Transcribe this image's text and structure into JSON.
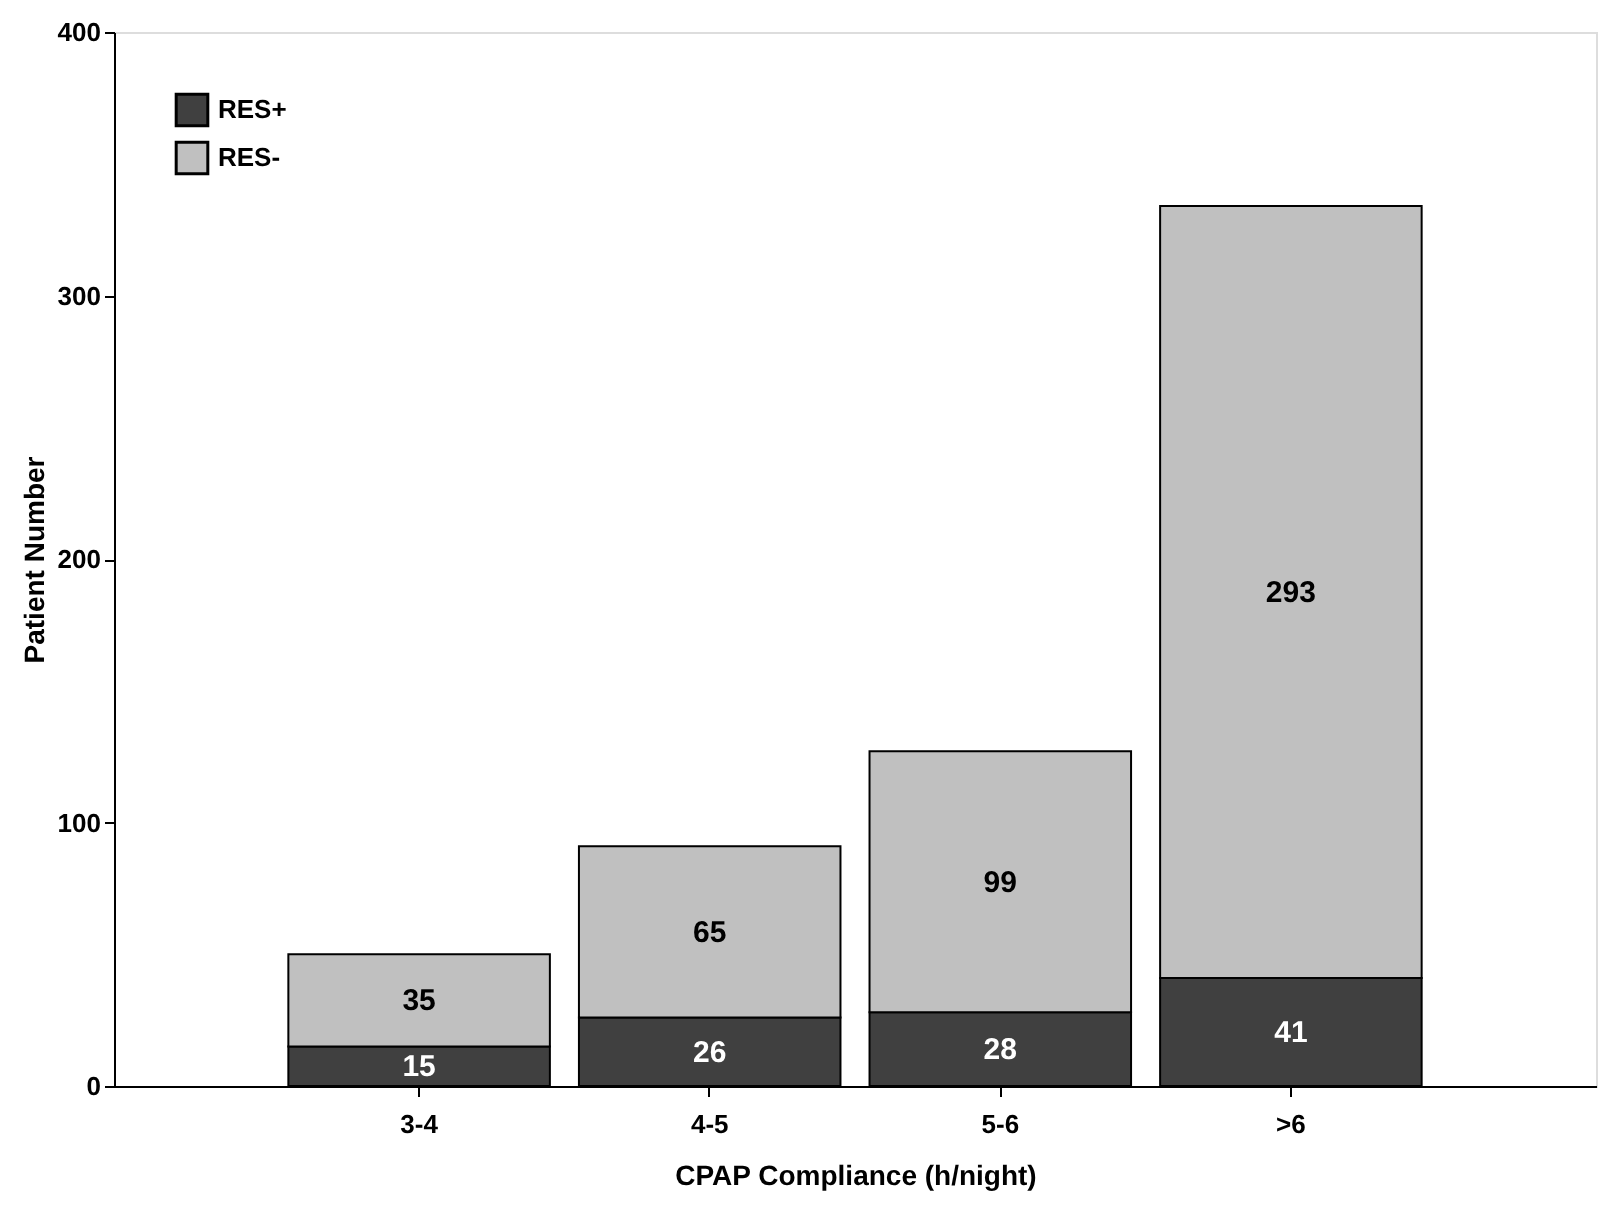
{
  "chart_data": {
    "type": "bar",
    "stacked": true,
    "xlabel": "CPAP Compliance (h/night)",
    "ylabel": "Patient Number",
    "categories": [
      "3-4",
      "4-5",
      "5-6",
      ">6"
    ],
    "series": [
      {
        "name": "RES+",
        "color": "#404040",
        "values": [
          15,
          26,
          28,
          41
        ]
      },
      {
        "name": "RES-",
        "color": "#c0c0c0",
        "values": [
          35,
          65,
          99,
          293
        ]
      }
    ],
    "ylim": [
      0,
      400
    ],
    "yticks": [
      0,
      100,
      200,
      300,
      400
    ],
    "grid": false,
    "legend": "top left",
    "data_labels": true
  }
}
